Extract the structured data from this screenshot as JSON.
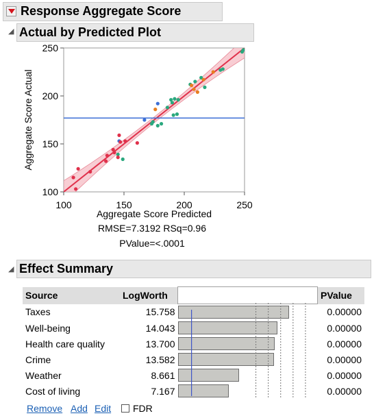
{
  "report": {
    "title": "Response Aggregate Score",
    "section_plot": "Actual by Predicted Plot",
    "section_effects": "Effect Summary"
  },
  "plot": {
    "xlabel": "Aggregate Score Predicted",
    "ylabel": "Aggregate Score Actual",
    "x_ticks": [
      "100",
      "150",
      "200",
      "250"
    ],
    "y_ticks": [
      "100",
      "150",
      "200",
      "250"
    ],
    "stat_line1": "RMSE=7.3192 RSq=0.96",
    "stat_line2": "PValue=<.0001",
    "colors": {
      "fit": "#e0314b",
      "band": "#f5b8c0",
      "mean": "#3d6fd6"
    }
  },
  "chart_data": {
    "type": "scatter",
    "xlabel": "Aggregate Score Predicted",
    "ylabel": "Aggregate Score Actual",
    "xlim": [
      100,
      250
    ],
    "ylim": [
      100,
      250
    ],
    "mean_line_y": 177,
    "fit_line": [
      [
        100,
        100
      ],
      [
        250,
        250
      ]
    ],
    "points": [
      {
        "x": 108,
        "y": 115,
        "c": "#e0314b"
      },
      {
        "x": 110,
        "y": 103,
        "c": "#e0314b"
      },
      {
        "x": 112,
        "y": 124,
        "c": "#e0314b"
      },
      {
        "x": 122,
        "y": 121,
        "c": "#e0314b"
      },
      {
        "x": 135,
        "y": 132,
        "c": "#e0314b"
      },
      {
        "x": 136,
        "y": 138,
        "c": "#e0314b"
      },
      {
        "x": 141,
        "y": 144,
        "c": "#e0314b"
      },
      {
        "x": 142,
        "y": 141,
        "c": "#e0314b"
      },
      {
        "x": 145,
        "y": 139,
        "c": "#2aa87e"
      },
      {
        "x": 145,
        "y": 136,
        "c": "#e0314b"
      },
      {
        "x": 146,
        "y": 159,
        "c": "#e0314b"
      },
      {
        "x": 146,
        "y": 153,
        "c": "#3d6fd6"
      },
      {
        "x": 147,
        "y": 152,
        "c": "#e0314b"
      },
      {
        "x": 149,
        "y": 134,
        "c": "#2aa87e"
      },
      {
        "x": 151,
        "y": 153,
        "c": "#e0314b"
      },
      {
        "x": 161,
        "y": 151,
        "c": "#e0314b"
      },
      {
        "x": 167,
        "y": 175,
        "c": "#3d6fd6"
      },
      {
        "x": 173,
        "y": 171,
        "c": "#2aa87e"
      },
      {
        "x": 174,
        "y": 173,
        "c": "#2aa87e"
      },
      {
        "x": 176,
        "y": 186,
        "c": "#e87e1f"
      },
      {
        "x": 178,
        "y": 169,
        "c": "#2aa87e"
      },
      {
        "x": 178,
        "y": 192,
        "c": "#3d6fd6"
      },
      {
        "x": 181,
        "y": 171,
        "c": "#2aa87e"
      },
      {
        "x": 186,
        "y": 188,
        "c": "#2aa87e"
      },
      {
        "x": 189,
        "y": 196,
        "c": "#2aa87e"
      },
      {
        "x": 190,
        "y": 193,
        "c": "#2aa87e"
      },
      {
        "x": 191,
        "y": 180,
        "c": "#2aa87e"
      },
      {
        "x": 192,
        "y": 197,
        "c": "#2aa87e"
      },
      {
        "x": 194,
        "y": 181,
        "c": "#2aa87e"
      },
      {
        "x": 195,
        "y": 196,
        "c": "#2aa87e"
      },
      {
        "x": 205,
        "y": 212,
        "c": "#2aa87e"
      },
      {
        "x": 206,
        "y": 211,
        "c": "#e87e1f"
      },
      {
        "x": 208,
        "y": 207,
        "c": "#e87e1f"
      },
      {
        "x": 209,
        "y": 215,
        "c": "#2aa87e"
      },
      {
        "x": 211,
        "y": 204,
        "c": "#e87e1f"
      },
      {
        "x": 214,
        "y": 219,
        "c": "#2aa87e"
      },
      {
        "x": 216,
        "y": 217,
        "c": "#e87e1f"
      },
      {
        "x": 217,
        "y": 209,
        "c": "#2aa87e"
      },
      {
        "x": 224,
        "y": 225,
        "c": "#e87e1f"
      },
      {
        "x": 230,
        "y": 227,
        "c": "#2aa87e"
      },
      {
        "x": 232,
        "y": 228,
        "c": "#2aa87e"
      },
      {
        "x": 248,
        "y": 246,
        "c": "#2aa87e"
      },
      {
        "x": 249,
        "y": 248,
        "c": "#2aa87e"
      }
    ]
  },
  "effects": {
    "headers": {
      "source": "Source",
      "logworth": "LogWorth",
      "pvalue": "PValue"
    },
    "rows": [
      {
        "source": "Taxes",
        "logworth": "15.758",
        "pvalue": "0.00000",
        "value": 15.758
      },
      {
        "source": "Well-being",
        "logworth": "14.043",
        "pvalue": "0.00000",
        "value": 14.043
      },
      {
        "source": "Health care quality",
        "logworth": "13.700",
        "pvalue": "0.00000",
        "value": 13.7
      },
      {
        "source": "Crime",
        "logworth": "13.582",
        "pvalue": "0.00000",
        "value": 13.582
      },
      {
        "source": "Weather",
        "logworth": "8.661",
        "pvalue": "0.00000",
        "value": 8.661
      },
      {
        "source": "Cost of living",
        "logworth": "7.167",
        "pvalue": "0.00000",
        "value": 7.167
      }
    ],
    "bar_scale_max": 19.5,
    "reference_logworth": 2
  },
  "actions": {
    "remove": "Remove",
    "add": "Add",
    "edit": "Edit",
    "fdr_label": "FDR"
  }
}
